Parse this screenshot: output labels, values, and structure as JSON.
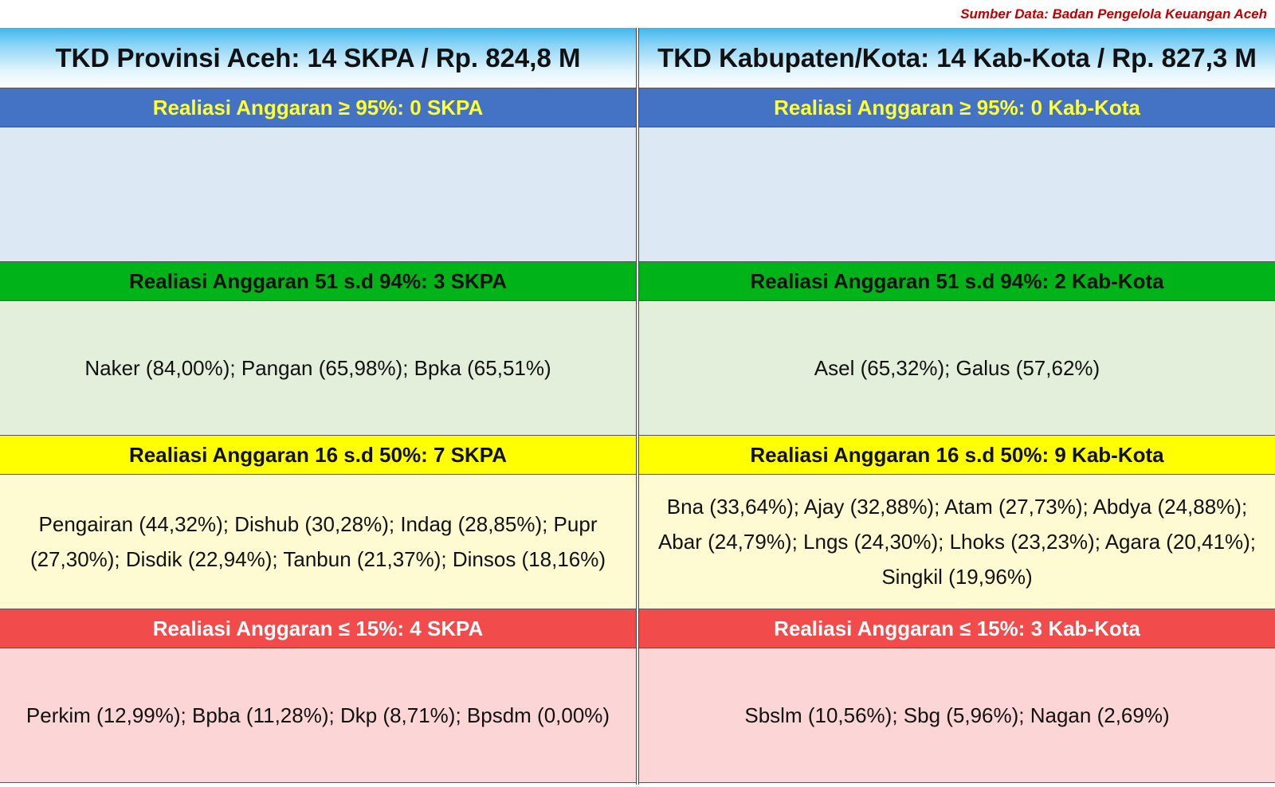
{
  "source": "Sumber Data: Badan Pengelola Keuangan Aceh",
  "colors": {
    "band_blue": "#4472c4",
    "band_green": "#00b319",
    "band_yellow": "#ffff00",
    "band_red": "#f24b4b",
    "cell_blue": "#dce8f4",
    "cell_green": "#e3eedb",
    "cell_yellow": "#fefbd2",
    "cell_red": "#fcd6d6"
  },
  "left": {
    "title": "TKD Provinsi Aceh: 14 SKPA / Rp. 824,8 M",
    "sections": [
      {
        "header": "Realiasi Anggaran ≥ 95%: 0 SKPA",
        "content": ""
      },
      {
        "header": "Realiasi Anggaran 51 s.d 94%: 3 SKPA",
        "content": "Naker (84,00%); Pangan (65,98%); Bpka (65,51%)"
      },
      {
        "header": "Realiasi Anggaran 16 s.d 50%: 7 SKPA",
        "content": "Pengairan (44,32%); Dishub (30,28%); Indag (28,85%); Pupr (27,30%); Disdik (22,94%); Tanbun (21,37%); Dinsos (18,16%)"
      },
      {
        "header": "Realiasi Anggaran ≤ 15%: 4 SKPA",
        "content": "Perkim (12,99%); Bpba (11,28%); Dkp (8,71%); Bpsdm (0,00%)"
      }
    ]
  },
  "right": {
    "title": "TKD Kabupaten/Kota: 14 Kab-Kota / Rp. 827,3 M",
    "sections": [
      {
        "header": "Realiasi Anggaran ≥ 95%: 0 Kab-Kota",
        "content": ""
      },
      {
        "header": "Realiasi Anggaran 51 s.d 94%: 2 Kab-Kota",
        "content": "Asel (65,32%); Galus (57,62%)"
      },
      {
        "header": "Realiasi Anggaran 16 s.d 50%: 9 Kab-Kota",
        "content": "Bna (33,64%); Ajay (32,88%); Atam (27,73%); Abdya (24,88%); Abar (24,79%); Lngs (24,30%); Lhoks (23,23%); Agara (20,41%); Singkil (19,96%)"
      },
      {
        "header": "Realiasi Anggaran ≤ 15%: 3 Kab-Kota",
        "content": "Sbslm (10,56%); Sbg (5,96%); Nagan (2,69%)"
      }
    ]
  }
}
